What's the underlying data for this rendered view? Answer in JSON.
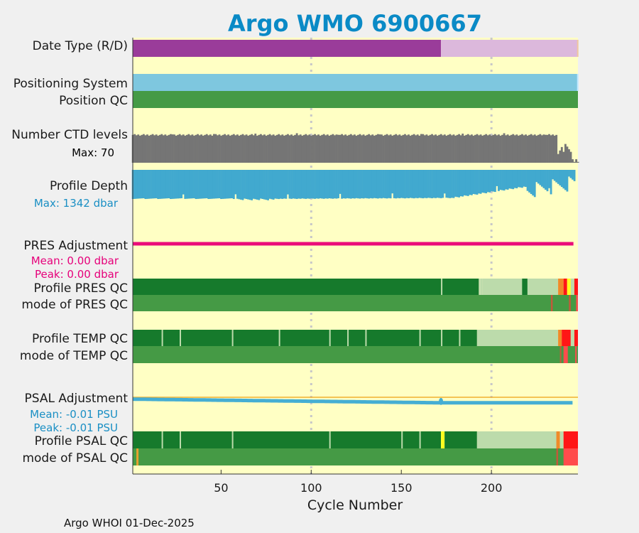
{
  "chart_data": {
    "type": "bar",
    "title": "Argo WMO 6900667",
    "xlabel": "Cycle Number",
    "xlim": [
      1,
      248
    ],
    "xticks": [
      50,
      100,
      150,
      200
    ],
    "footer": "Argo WHOI 01-Dec-2025",
    "rows": {
      "date_type": "Date Type (R/D)",
      "positioning": "Positioning System",
      "position_qc": "Position QC",
      "ctd_levels": "Number CTD levels",
      "ctd_max": "Max: 70",
      "profile_depth": "Profile Depth",
      "depth_max": "Max: 1342 dbar",
      "pres_adj": "PRES Adjustment",
      "pres_mean": "Mean: 0.00 dbar",
      "pres_peak": "Peak: 0.00 dbar",
      "profile_pres_qc": "Profile PRES QC",
      "mode_pres_qc": "mode of PRES QC",
      "profile_temp_qc": "Profile TEMP QC",
      "mode_temp_qc": "mode of TEMP QC",
      "psal_adj": "PSAL Adjustment",
      "psal_mean": "Mean: -0.01 PSU",
      "psal_peak": "Peak: -0.01 PSU",
      "profile_psal_qc": "Profile PSAL QC",
      "mode_psal_qc": "mode of PSAL QC"
    },
    "date_type_segments": [
      {
        "from": 1,
        "to": 172,
        "mode": "R"
      },
      {
        "from": 172,
        "to": 248,
        "mode": "D"
      }
    ],
    "ctd_levels_max": 70,
    "ctd_levels_typical": [
      62,
      66
    ],
    "profile_depth_max_dbar": 1342,
    "pres_adjustment_dbar": 0.0,
    "psal_adjustment_start": -0.004,
    "psal_adjustment_end": -0.012,
    "profile_pres_qc": [
      {
        "from": 1,
        "to": 193,
        "grade": "A"
      },
      {
        "from": 193,
        "to": 195,
        "grade": "B"
      },
      {
        "from": 195,
        "to": 217,
        "grade": "C"
      },
      {
        "from": 217,
        "to": 220,
        "grade": "A"
      },
      {
        "from": 220,
        "to": 237,
        "grade": "C"
      },
      {
        "from": 237,
        "to": 240,
        "grade": "E"
      },
      {
        "from": 240,
        "to": 242,
        "grade": "F"
      },
      {
        "from": 242,
        "to": 244,
        "grade": "D"
      },
      {
        "from": 244,
        "to": 246,
        "grade": "C"
      },
      {
        "from": 246,
        "to": 248,
        "grade": "F"
      }
    ],
    "profile_temp_qc": [
      {
        "from": 1,
        "to": 192,
        "grade": "A"
      },
      {
        "from": 192,
        "to": 237,
        "grade": "C"
      },
      {
        "from": 237,
        "to": 239,
        "grade": "E"
      },
      {
        "from": 239,
        "to": 244,
        "grade": "F"
      },
      {
        "from": 244,
        "to": 246,
        "grade": "C"
      },
      {
        "from": 246,
        "to": 248,
        "grade": "F"
      }
    ],
    "profile_psal_qc": [
      {
        "from": 1,
        "to": 172,
        "grade": "A"
      },
      {
        "from": 172,
        "to": 174,
        "grade": "D"
      },
      {
        "from": 174,
        "to": 192,
        "grade": "A"
      },
      {
        "from": 192,
        "to": 236,
        "grade": "C"
      },
      {
        "from": 236,
        "to": 238,
        "grade": "E"
      },
      {
        "from": 238,
        "to": 240,
        "grade": "C"
      },
      {
        "from": 240,
        "to": 248,
        "grade": "F"
      }
    ]
  }
}
